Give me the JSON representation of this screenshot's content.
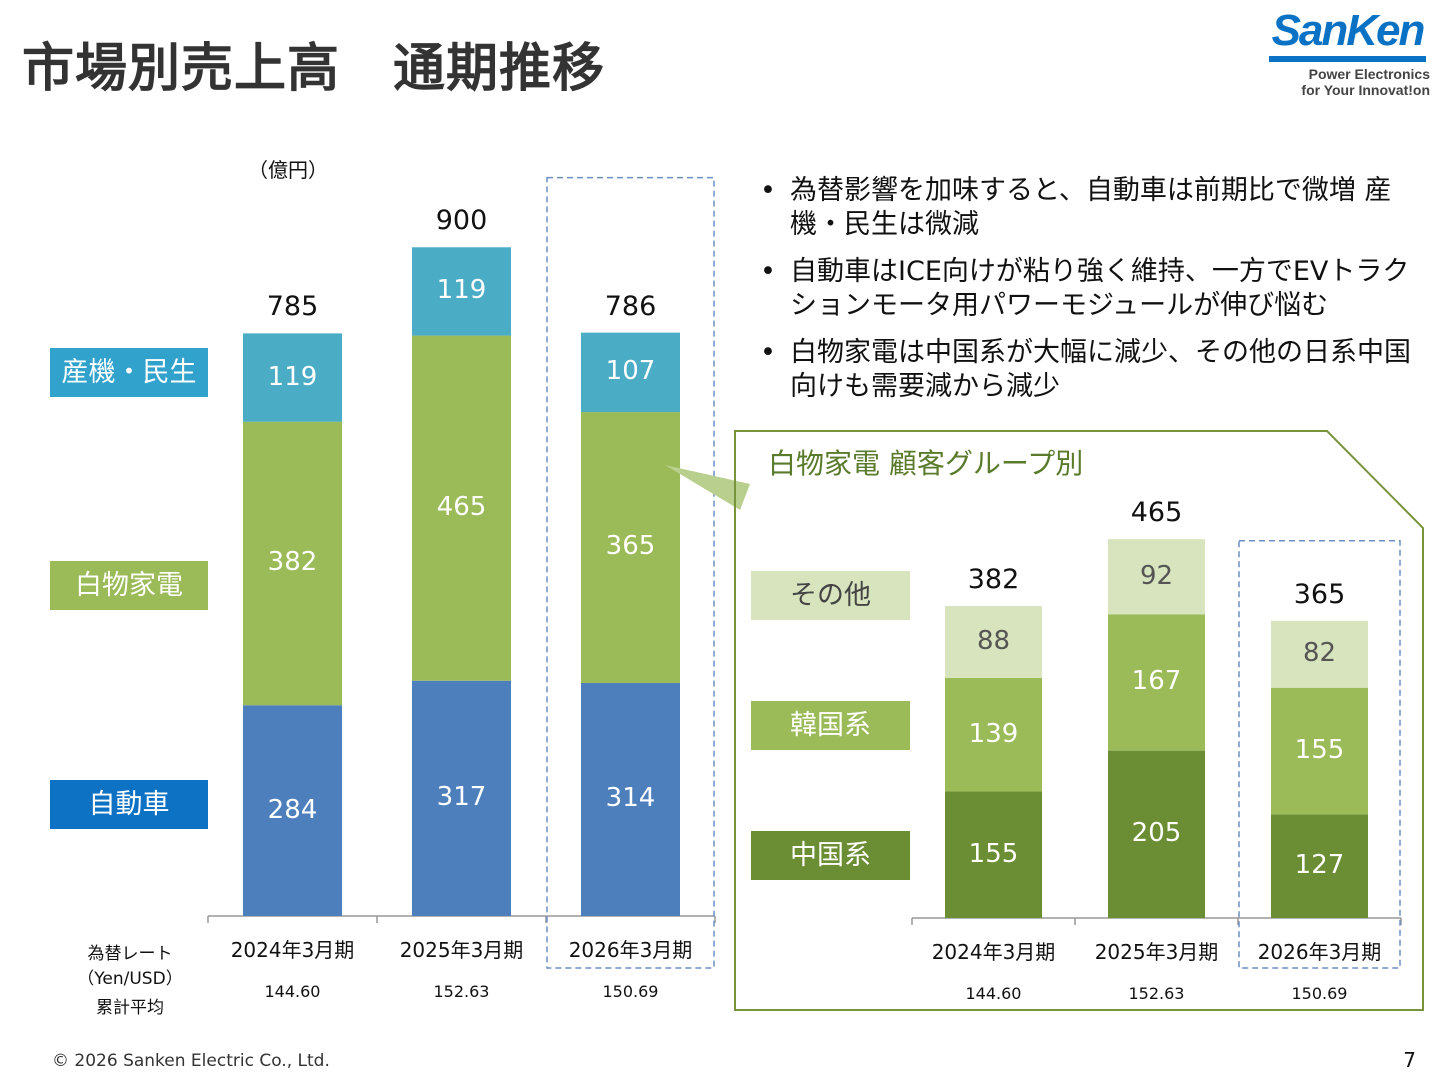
{
  "page": {
    "title": "市場別売上高　通期推移",
    "footer": "© 2026   Sanken Electric Co., Ltd.",
    "page_number": "7"
  },
  "logo": {
    "wordmark": "SanKen",
    "tagline_1": "Power Electronics",
    "tagline_2": "for Your Innovat!on",
    "color": "#0a72c4"
  },
  "bullets": [
    "為替影響を加味すると、自動車は前期比で微増 産機・民生は微減",
    "自動車はICE向けが粘り強く維持、一方でEVトラクションモータ用パワーモジュールが伸び悩む",
    "白物家電は中国系が大幅に減少、その他の日系中国向けも需要減から減少"
  ],
  "rates": {
    "label_1": "為替レート",
    "label_2": "（Yen/USD）",
    "label_3": "累計平均"
  },
  "chart_data": [
    {
      "type": "bar",
      "stacked": true,
      "unit": "（億円）",
      "categories": [
        "2024年3月期",
        "2025年3月期",
        "2026年3月期"
      ],
      "series": [
        {
          "name": "自動車",
          "values": [
            284,
            317,
            314
          ],
          "color": "#4e7fbd",
          "legend_color": "#0e72c4"
        },
        {
          "name": "白物家電",
          "values": [
            382,
            465,
            365
          ],
          "color": "#9bbb59",
          "legend_color": "#9bbb59"
        },
        {
          "name": "産機・民生",
          "values": [
            119,
            119,
            107
          ],
          "color": "#4bacc6",
          "legend_color": "#31a2cc"
        }
      ],
      "totals": [
        785,
        900,
        786
      ],
      "exchange_rates": [
        "144.60",
        "152.63",
        "150.69"
      ],
      "highlight": "2026年3月期"
    },
    {
      "type": "bar",
      "stacked": true,
      "title": "白物家電  顧客グループ別",
      "categories": [
        "2024年3月期",
        "2025年3月期",
        "2026年3月期"
      ],
      "series": [
        {
          "name": "中国系",
          "values": [
            155,
            205,
            127
          ],
          "color": "#6b8e34"
        },
        {
          "name": "韓国系",
          "values": [
            139,
            167,
            155
          ],
          "color": "#9bbb59"
        },
        {
          "name": "その他",
          "values": [
            88,
            92,
            82
          ],
          "color": "#d7e4bd"
        }
      ],
      "totals": [
        382,
        465,
        365
      ],
      "exchange_rates": [
        "144.60",
        "152.63",
        "150.69"
      ],
      "highlight": "2026年3月期"
    }
  ]
}
